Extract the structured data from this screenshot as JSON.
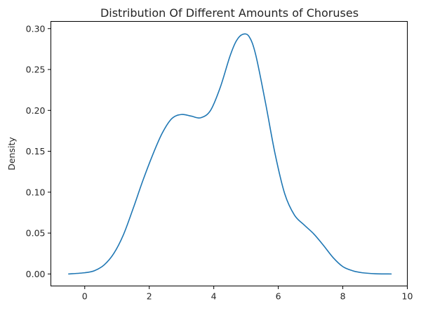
{
  "chart_data": {
    "type": "line",
    "title": "Distribution Of Different Amounts of Choruses",
    "xlabel": "",
    "ylabel": "Density",
    "xlim": [
      -1.05,
      10.0
    ],
    "ylim": [
      -0.0147,
      0.3088
    ],
    "xticks": [
      0,
      2,
      4,
      6,
      8,
      10
    ],
    "xtick_labels": [
      "0",
      "2",
      "4",
      "6",
      "8",
      "10"
    ],
    "yticks": [
      0.0,
      0.05,
      0.1,
      0.15,
      0.2,
      0.25,
      0.3
    ],
    "ytick_labels": [
      "0.00",
      "0.05",
      "0.10",
      "0.15",
      "0.20",
      "0.25",
      "0.30"
    ],
    "grid": false,
    "legend": "none",
    "series": [
      {
        "color": "#1f77b4",
        "x": [
          -0.5,
          0.0,
          0.3,
          0.6,
          0.9,
          1.2,
          1.5,
          1.8,
          2.1,
          2.4,
          2.7,
          3.0,
          3.3,
          3.6,
          3.9,
          4.2,
          4.5,
          4.7,
          4.9,
          5.1,
          5.3,
          5.6,
          5.9,
          6.2,
          6.5,
          6.8,
          7.1,
          7.4,
          7.7,
          8.0,
          8.3,
          8.6,
          9.0,
          9.5
        ],
        "y": [
          0.0,
          0.0015,
          0.004,
          0.011,
          0.025,
          0.048,
          0.08,
          0.114,
          0.145,
          0.172,
          0.19,
          0.195,
          0.193,
          0.191,
          0.2,
          0.228,
          0.266,
          0.285,
          0.293,
          0.29,
          0.268,
          0.21,
          0.147,
          0.098,
          0.072,
          0.06,
          0.049,
          0.035,
          0.02,
          0.009,
          0.004,
          0.0015,
          0.0003,
          0.0
        ]
      }
    ]
  }
}
